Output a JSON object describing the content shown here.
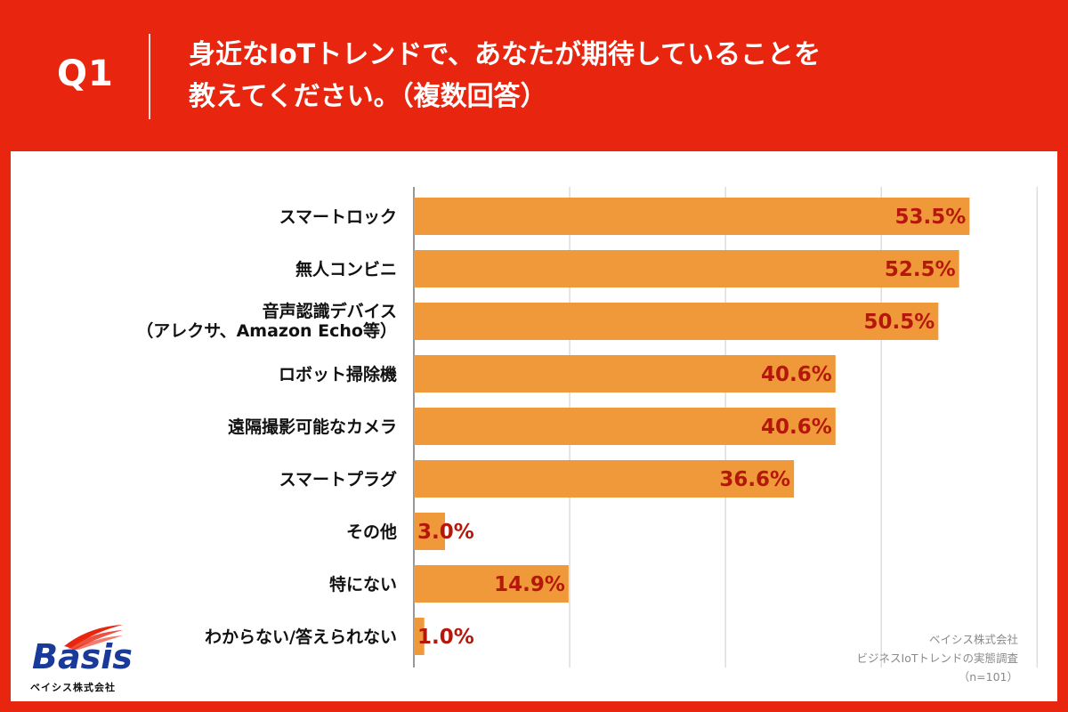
{
  "header": {
    "question_number": "Q1",
    "title_line1": "身近なIoTトレンドで、あなたが期待していることを",
    "title_line2": "教えてください。（複数回答）"
  },
  "colors": {
    "background": "#e8260f",
    "bar": "#f0993a",
    "value_text": "#b5180b",
    "grid": "#cccccc"
  },
  "chart_data": {
    "type": "bar",
    "orientation": "horizontal",
    "title": "",
    "xlabel": "",
    "ylabel": "",
    "unit": "%",
    "xlim": [
      0,
      60
    ],
    "grid": true,
    "categories": [
      [
        "スマートロック"
      ],
      [
        "無人コンビニ"
      ],
      [
        "音声認識デバイス",
        "（アレクサ、Amazon Echo等）"
      ],
      [
        "ロボット掃除機"
      ],
      [
        "遠隔撮影可能なカメラ"
      ],
      [
        "スマートプラグ"
      ],
      [
        "その他"
      ],
      [
        "特にない"
      ],
      [
        "わからない/答えられない"
      ]
    ],
    "values": [
      53.5,
      52.5,
      50.5,
      40.6,
      40.6,
      36.6,
      3.0,
      14.9,
      1.0
    ],
    "value_labels": [
      "53.5%",
      "52.5%",
      "50.5%",
      "40.6%",
      "40.6%",
      "36.6%",
      "3.0%",
      "14.9%",
      "1.0%"
    ]
  },
  "source": {
    "company": "ベイシス株式会社",
    "survey": "ビジネスIoTトレンドの実態調査",
    "sample": "（n=101）"
  },
  "logo": {
    "wordmark": "Basis",
    "company": "ベイシス株式会社",
    "swoosh_color": "#e8260f",
    "word_color": "#1a3a9a"
  }
}
